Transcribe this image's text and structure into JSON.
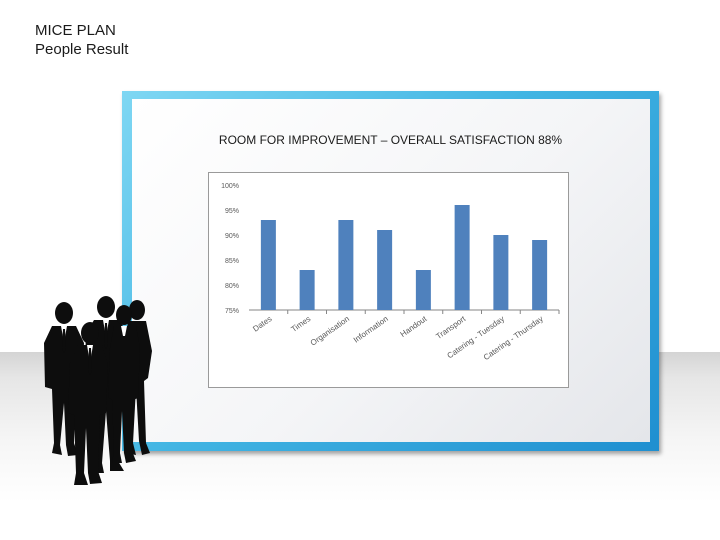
{
  "header": {
    "title": "MICE PLAN",
    "subtitle": "People Result"
  },
  "chart_data": {
    "type": "bar",
    "title": "ROOM FOR IMPROVEMENT – OVERALL SATISFACTION 88%",
    "categories": [
      "Dates",
      "Times",
      "Organisation",
      "Information",
      "Handout",
      "Transport",
      "Catering - Tuesday",
      "Catering - Thursday"
    ],
    "values": [
      93,
      83,
      93,
      91,
      83,
      96,
      90,
      89
    ],
    "ylim": [
      75,
      100
    ],
    "yticks": [
      75,
      80,
      85,
      90,
      95,
      100
    ],
    "ytick_labels": [
      "75%",
      "80%",
      "85%",
      "90%",
      "95%",
      "100%"
    ],
    "xlabel": "",
    "ylabel": "",
    "grid": false,
    "bar_color": "#4f81bd"
  }
}
